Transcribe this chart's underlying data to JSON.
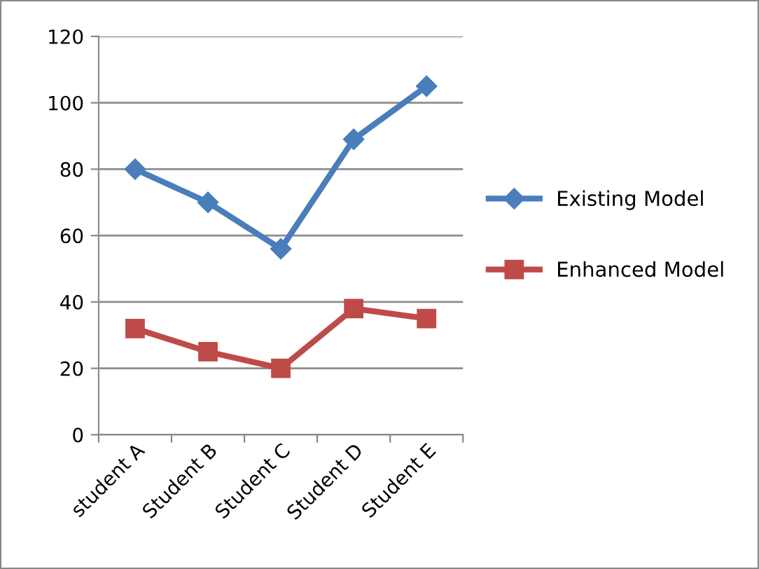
{
  "chart_data": {
    "type": "line",
    "categories": [
      "student A",
      "Student B",
      "Student C",
      "Student D",
      "Student E"
    ],
    "series": [
      {
        "name": "Existing Model",
        "color": "#4a7ebb",
        "marker": "diamond",
        "values": [
          80,
          70,
          56,
          89,
          105
        ]
      },
      {
        "name": "Enhanced Model",
        "color": "#be4b48",
        "marker": "square",
        "values": [
          32,
          25,
          20,
          38,
          35
        ]
      }
    ],
    "ylim": [
      0,
      120
    ],
    "yticks": [
      0,
      20,
      40,
      60,
      80,
      100,
      120
    ],
    "grid": "y",
    "legend": "right"
  }
}
